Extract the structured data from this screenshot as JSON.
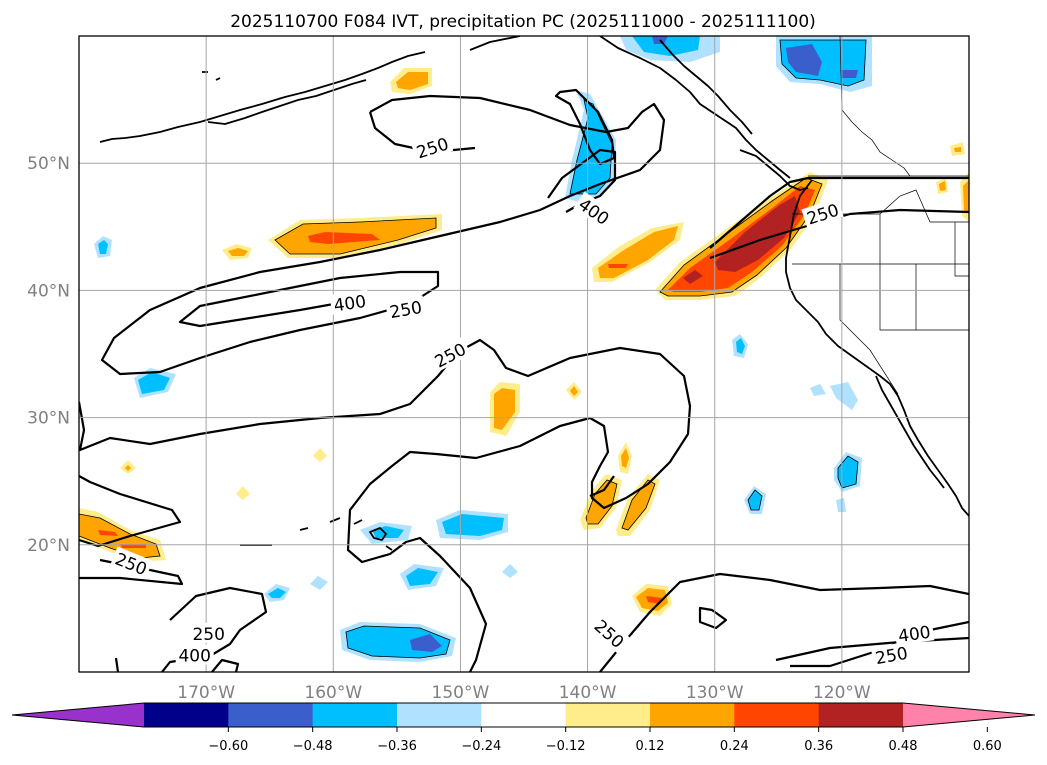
{
  "chart_data": {
    "type": "map-contour",
    "title": "2025110700 F084 IVT, precipitation PC (2025111000 - 2025111100)",
    "lon_range": [
      -180,
      -110
    ],
    "lat_range": [
      10,
      60
    ],
    "lon_ticks": [
      -170,
      -160,
      -150,
      -140,
      -130,
      -120
    ],
    "lon_tick_labels": [
      "170°W",
      "160°W",
      "150°W",
      "140°W",
      "130°W",
      "120°W"
    ],
    "lat_ticks": [
      20,
      30,
      40,
      50
    ],
    "lat_tick_labels": [
      "20°N",
      "30°N",
      "40°N",
      "50°N"
    ],
    "grid": true,
    "ivt_contour_levels": [
      250,
      400
    ],
    "contour_labels": [
      {
        "text": "250",
        "lon": -152.2,
        "lat": 51.2,
        "angle": -18
      },
      {
        "text": "400",
        "lon": -139.5,
        "lat": 46.2,
        "angle": 35
      },
      {
        "text": "400",
        "lon": -158.7,
        "lat": 39.0,
        "angle": -8
      },
      {
        "text": "250",
        "lon": -154.3,
        "lat": 38.5,
        "angle": -10
      },
      {
        "text": "250",
        "lon": -150.8,
        "lat": 34.9,
        "angle": -28
      },
      {
        "text": "250",
        "lon": -121.5,
        "lat": 46.0,
        "angle": -18
      },
      {
        "text": "250",
        "lon": -175.9,
        "lat": 18.5,
        "angle": 22
      },
      {
        "text": "250",
        "lon": -169.8,
        "lat": 13.0,
        "angle": 0
      },
      {
        "text": "400",
        "lon": -170.9,
        "lat": 11.3,
        "angle": 0
      },
      {
        "text": "250",
        "lon": -138.3,
        "lat": 13.0,
        "angle": 42
      },
      {
        "text": "400",
        "lon": -114.3,
        "lat": 13.0,
        "angle": -8
      },
      {
        "text": "250",
        "lon": -116.1,
        "lat": 11.3,
        "angle": -10
      }
    ],
    "colorbar": {
      "levels": [
        -0.6,
        -0.48,
        -0.36,
        -0.24,
        -0.12,
        0.12,
        0.24,
        0.36,
        0.48,
        0.6
      ],
      "tick_labels": [
        "−0.60",
        "−0.48",
        "−0.36",
        "−0.24",
        "−0.12",
        "0.12",
        "0.24",
        "0.36",
        "0.48",
        "0.60"
      ],
      "colors": [
        "#9932CC",
        "#00008B",
        "#3A5FCD",
        "#00BFFF",
        "#B0E2FF",
        "#FFFFFF",
        "#FFEC8B",
        "#FFA500",
        "#FF4500",
        "#B22222",
        "#FF82AB"
      ],
      "extend": "both"
    }
  }
}
